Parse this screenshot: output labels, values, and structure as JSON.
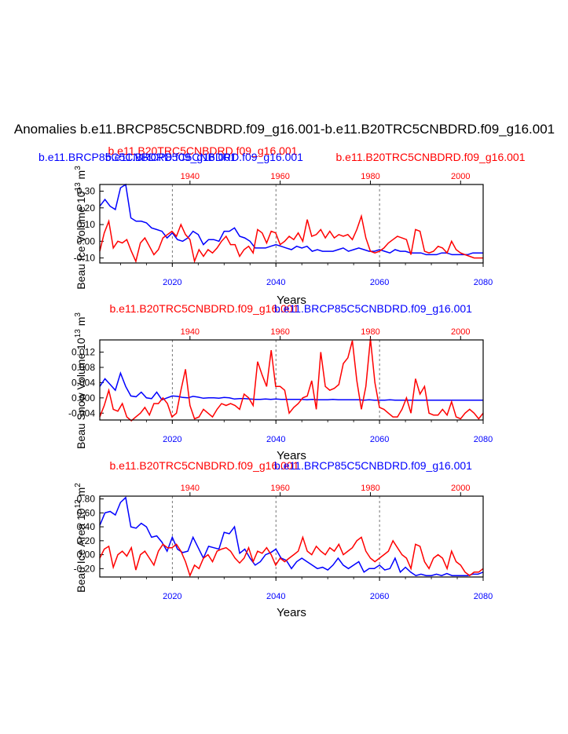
{
  "title": "Anomalies b.e11.BRCP85C5CNBDRD.f09_g16.001-b.e11.B20TRC5CNBDRD.f09_g16.001",
  "xlabel": "Years",
  "colors": {
    "blue": "#0000ff",
    "red": "#ff0000",
    "axis": "#000000"
  },
  "chart_data": [
    {
      "type": "line",
      "panel": "volume",
      "ylabel": "Beau Ice Volume 10",
      "ylabel_exp": "13",
      "ylabel_unit": " m",
      "ylabel_unit_exp": "3",
      "top_labels": [
        {
          "text": "b.e11.B20TRC5CNBDRD.f09_g16.001",
          "color": "#ff0000"
        },
        {
          "text": "b.e11.BRCP85C5CNBDRD.f09_g16.001",
          "color": "#0000ff"
        },
        {
          "text": "b.e11.BRCP85C5CNBDRD.f09_g16.001",
          "color": "#0000ff"
        },
        {
          "text": "b.e11.B20TRC5CNBDRD.f09_g16.001",
          "color": "#ff0000"
        }
      ],
      "ylim": [
        -0.13,
        0.34
      ],
      "yticks": [
        -0.1,
        0.0,
        0.1,
        0.2,
        0.3
      ],
      "ytick_labels": [
        "-0.10",
        "0.00",
        "0.10",
        "0.20",
        "0.30"
      ],
      "bottom_xlim": [
        2006,
        2080
      ],
      "bottom_xticks": [
        "2020",
        "2040",
        "2060",
        "2080"
      ],
      "top_xlim": [
        1920,
        2005
      ],
      "top_xticks": [
        "1940",
        "1960",
        "1980",
        "2000"
      ],
      "series": [
        {
          "axis": "bottom",
          "color": "#0000ff",
          "x_start": 2006,
          "values": [
            0.21,
            0.25,
            0.21,
            0.19,
            0.32,
            0.34,
            0.14,
            0.12,
            0.12,
            0.11,
            0.08,
            0.07,
            0.06,
            0.02,
            0.05,
            0.01,
            0.0,
            0.02,
            0.06,
            0.04,
            -0.02,
            0.01,
            0.01,
            0.0,
            0.06,
            0.06,
            0.08,
            0.03,
            0.02,
            0.0,
            -0.04,
            -0.04,
            -0.04,
            -0.03,
            -0.02,
            -0.03,
            -0.04,
            -0.05,
            -0.03,
            -0.04,
            -0.03,
            -0.06,
            -0.05,
            -0.06,
            -0.06,
            -0.06,
            -0.05,
            -0.04,
            -0.06,
            -0.05,
            -0.04,
            -0.05,
            -0.06,
            -0.06,
            -0.05,
            -0.06,
            -0.07,
            -0.05,
            -0.06,
            -0.06,
            -0.07,
            -0.07,
            -0.07,
            -0.08,
            -0.08,
            -0.08,
            -0.07,
            -0.07,
            -0.08,
            -0.08,
            -0.08,
            -0.08,
            -0.07,
            -0.07,
            -0.07
          ]
        },
        {
          "axis": "top",
          "color": "#ff0000",
          "x_start": 1920,
          "values": [
            -0.06,
            0.05,
            0.12,
            -0.04,
            0.0,
            -0.01,
            0.01,
            -0.06,
            -0.12,
            -0.01,
            0.02,
            -0.03,
            -0.08,
            -0.05,
            0.02,
            0.04,
            0.06,
            0.03,
            0.1,
            0.04,
            0.01,
            -0.12,
            -0.05,
            -0.09,
            -0.05,
            -0.07,
            -0.04,
            0.0,
            0.03,
            -0.02,
            -0.02,
            -0.09,
            -0.05,
            -0.03,
            -0.07,
            0.07,
            0.05,
            -0.01,
            0.06,
            0.05,
            -0.02,
            0.0,
            0.03,
            0.01,
            0.05,
            0.0,
            0.13,
            0.03,
            0.04,
            0.07,
            0.02,
            0.06,
            0.02,
            0.04,
            0.03,
            0.04,
            0.01,
            0.07,
            0.15,
            0.02,
            -0.06,
            -0.07,
            -0.06,
            -0.04,
            -0.01,
            0.01,
            0.03,
            0.02,
            0.01,
            -0.08,
            0.07,
            0.06,
            -0.06,
            -0.07,
            -0.06,
            -0.03,
            -0.04,
            -0.07,
            0.0,
            -0.05,
            -0.07,
            -0.08,
            -0.09,
            -0.1,
            -0.1,
            -0.1
          ]
        }
      ]
    },
    {
      "type": "line",
      "panel": "snow",
      "ylabel": "Beau Snow Volume 10",
      "ylabel_exp": "13",
      "ylabel_unit": " m",
      "ylabel_unit_exp": "3",
      "top_labels": [
        {
          "text": "b.e11.B20TRC5CNBDRD.f09_g16.001",
          "color": "#ff0000"
        },
        {
          "text": "b.e11.BRCP85C5CNBDRD.f09_g16.001",
          "color": "#0000ff"
        }
      ],
      "ylim": [
        -0.0058,
        0.0152
      ],
      "yticks": [
        -0.004,
        0.0,
        0.004,
        0.008,
        0.012
      ],
      "ytick_labels": [
        "-0.004",
        "0.000",
        "0.004",
        "0.008",
        "0.012"
      ],
      "bottom_xlim": [
        2006,
        2080
      ],
      "bottom_xticks": [
        "2020",
        "2040",
        "2060",
        "2080"
      ],
      "top_xlim": [
        1920,
        2005
      ],
      "top_xticks": [
        "1940",
        "1960",
        "1980",
        "2000"
      ],
      "series": [
        {
          "axis": "bottom",
          "color": "#0000ff",
          "x_start": 2006,
          "values": [
            0.003,
            0.005,
            0.0035,
            0.002,
            0.0065,
            0.003,
            0.0005,
            0.0003,
            0.0015,
            0.0,
            -0.0002,
            0.0015,
            -0.0005,
            0.0,
            0.0005,
            0.0004,
            0.0001,
            0.0,
            0.0004,
            0.0002,
            -0.0001,
            0.0,
            0.0,
            -0.0001,
            0.0001,
            0.0,
            -0.0003,
            -0.0002,
            -0.0002,
            -0.0003,
            -0.0004,
            -0.0004,
            -0.0003,
            -0.0004,
            -0.0003,
            -0.0004,
            -0.0004,
            -0.0004,
            -0.0004,
            -0.0004,
            -0.0005,
            -0.0004,
            -0.0005,
            -0.0005,
            -0.0005,
            -0.0004,
            -0.0005,
            -0.0005,
            -0.0005,
            -0.0005,
            -0.0005,
            -0.0006,
            -0.0005,
            -0.0006,
            -0.0006,
            -0.0006,
            -0.0005,
            -0.0006,
            -0.0006,
            -0.0006,
            -0.0006,
            -0.0006,
            -0.0006,
            -0.0006,
            -0.0006,
            -0.0006,
            -0.0006,
            -0.0006,
            -0.0006,
            -0.0006,
            -0.0006,
            -0.0006,
            -0.0006,
            -0.0006,
            -0.0006
          ]
        },
        {
          "axis": "top",
          "color": "#ff0000",
          "x_start": 1920,
          "values": [
            -0.005,
            -0.002,
            0.002,
            -0.003,
            -0.0035,
            -0.0015,
            -0.005,
            -0.006,
            -0.005,
            -0.004,
            -0.0025,
            -0.0045,
            -0.0015,
            -0.0015,
            0.0,
            -0.0015,
            -0.005,
            -0.004,
            0.002,
            0.0075,
            -0.002,
            -0.0055,
            -0.005,
            -0.003,
            -0.004,
            -0.005,
            -0.003,
            -0.0015,
            -0.002,
            -0.0015,
            -0.002,
            -0.003,
            0.001,
            0.0,
            -0.002,
            0.0095,
            0.006,
            0.003,
            0.0125,
            0.003,
            0.003,
            0.002,
            -0.004,
            -0.0025,
            -0.0015,
            0.0,
            0.0005,
            0.0045,
            -0.003,
            0.012,
            0.003,
            0.002,
            0.0025,
            0.0035,
            0.009,
            0.0105,
            0.015,
            0.0045,
            -0.003,
            0.003,
            0.0155,
            0.004,
            -0.0025,
            -0.003,
            -0.004,
            -0.005,
            -0.005,
            -0.003,
            0.0,
            -0.004,
            0.005,
            0.001,
            0.003,
            -0.004,
            -0.0045,
            -0.0045,
            -0.003,
            -0.0045,
            -0.001,
            -0.005,
            -0.0055,
            -0.004,
            -0.003,
            -0.004,
            -0.0055,
            -0.004
          ]
        }
      ]
    },
    {
      "type": "line",
      "panel": "area",
      "ylabel": "Beau Ice Area 10",
      "ylabel_exp": "12",
      "ylabel_unit": " m",
      "ylabel_unit_exp": "2",
      "top_labels": [
        {
          "text": "b.e11.B20TRC5CNBDRD.f09_g16.001",
          "color": "#ff0000"
        },
        {
          "text": "b.e11.BRCP85C5CNBDRD.f09_g16.001",
          "color": "#0000ff"
        }
      ],
      "ylim": [
        -0.32,
        0.84
      ],
      "yticks": [
        -0.2,
        0.0,
        0.2,
        0.4,
        0.6,
        0.8
      ],
      "ytick_labels": [
        "-0.20",
        "0.00",
        "0.20",
        "0.40",
        "0.60",
        "0.80"
      ],
      "bottom_xlim": [
        2006,
        2080
      ],
      "bottom_xticks": [
        "2020",
        "2040",
        "2060",
        "2080"
      ],
      "top_xlim": [
        1920,
        2005
      ],
      "top_xticks": [
        "1940",
        "1960",
        "1980",
        "2000"
      ],
      "series": [
        {
          "axis": "bottom",
          "color": "#0000ff",
          "x_start": 2006,
          "values": [
            0.42,
            0.6,
            0.62,
            0.57,
            0.75,
            0.82,
            0.4,
            0.38,
            0.45,
            0.4,
            0.25,
            0.27,
            0.18,
            0.05,
            0.25,
            0.08,
            0.03,
            0.05,
            0.25,
            0.1,
            -0.05,
            0.12,
            0.1,
            0.08,
            0.32,
            0.3,
            0.4,
            0.02,
            0.08,
            -0.05,
            -0.15,
            -0.1,
            0.0,
            0.03,
            0.08,
            -0.05,
            -0.08,
            -0.2,
            -0.1,
            -0.05,
            -0.1,
            -0.15,
            -0.2,
            -0.18,
            -0.22,
            -0.15,
            -0.05,
            -0.15,
            -0.2,
            -0.15,
            -0.1,
            -0.25,
            -0.2,
            -0.2,
            -0.15,
            -0.22,
            -0.2,
            -0.05,
            -0.25,
            -0.18,
            -0.25,
            -0.3,
            -0.28,
            -0.3,
            -0.3,
            -0.28,
            -0.3,
            -0.27,
            -0.3,
            -0.3,
            -0.3,
            -0.3,
            -0.28,
            -0.28,
            -0.25
          ]
        },
        {
          "axis": "top",
          "color": "#ff0000",
          "x_start": 1920,
          "values": [
            -0.05,
            0.08,
            0.12,
            -0.18,
            0.0,
            0.05,
            -0.02,
            0.1,
            -0.22,
            0.0,
            0.05,
            -0.05,
            -0.15,
            0.05,
            0.15,
            0.1,
            0.1,
            0.15,
            0.05,
            -0.1,
            -0.3,
            -0.15,
            -0.2,
            -0.05,
            0.0,
            -0.1,
            0.05,
            0.08,
            0.1,
            0.05,
            -0.05,
            -0.12,
            -0.05,
            0.1,
            -0.1,
            0.05,
            0.02,
            0.1,
            0.0,
            -0.15,
            -0.05,
            -0.1,
            -0.05,
            0.0,
            0.05,
            0.25,
            0.05,
            0.0,
            0.12,
            0.05,
            0.0,
            0.1,
            0.05,
            0.15,
            0.0,
            0.05,
            0.1,
            0.2,
            0.25,
            0.05,
            -0.05,
            -0.1,
            -0.05,
            0.0,
            0.05,
            0.2,
            0.1,
            0.0,
            -0.05,
            -0.2,
            0.15,
            0.12,
            -0.1,
            -0.2,
            -0.05,
            0.0,
            -0.05,
            -0.2,
            0.05,
            -0.1,
            -0.15,
            -0.25,
            -0.3,
            -0.25,
            -0.25,
            -0.2
          ]
        }
      ]
    }
  ]
}
